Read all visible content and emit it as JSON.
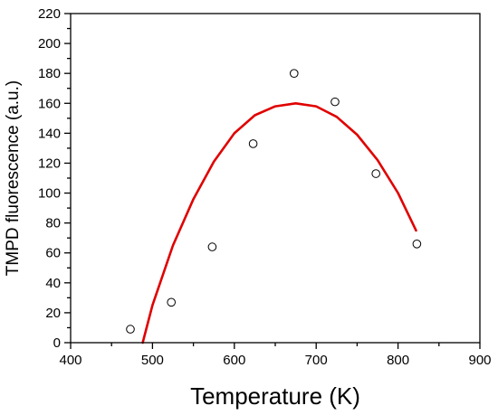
{
  "chart_data": {
    "type": "scatter",
    "title": "",
    "xlabel": "Temperature (K)",
    "ylabel": "TMPD fluorescence (a.u.)",
    "xlim": [
      400,
      900
    ],
    "ylim": [
      0,
      220
    ],
    "xticks": [
      400,
      500,
      600,
      700,
      800,
      900
    ],
    "yticks": [
      0,
      20,
      40,
      60,
      80,
      100,
      120,
      140,
      160,
      180,
      200,
      220
    ],
    "grid": false,
    "legend": "none",
    "series": [
      {
        "kind": "scatter",
        "marker": "open-circle",
        "color": "#000000",
        "x": [
          473,
          523,
          573,
          623,
          673,
          723,
          773,
          823
        ],
        "y": [
          9,
          27,
          64,
          133,
          180,
          161,
          113,
          66
        ]
      },
      {
        "kind": "fit-line",
        "color": "#e00000",
        "x": [
          488,
          500,
          525,
          550,
          575,
          600,
          625,
          650,
          675,
          700,
          725,
          750,
          775,
          800,
          822
        ],
        "y": [
          0,
          25,
          65,
          96,
          121,
          140,
          152,
          158,
          160,
          158,
          151,
          139,
          122,
          100,
          75
        ]
      }
    ]
  }
}
